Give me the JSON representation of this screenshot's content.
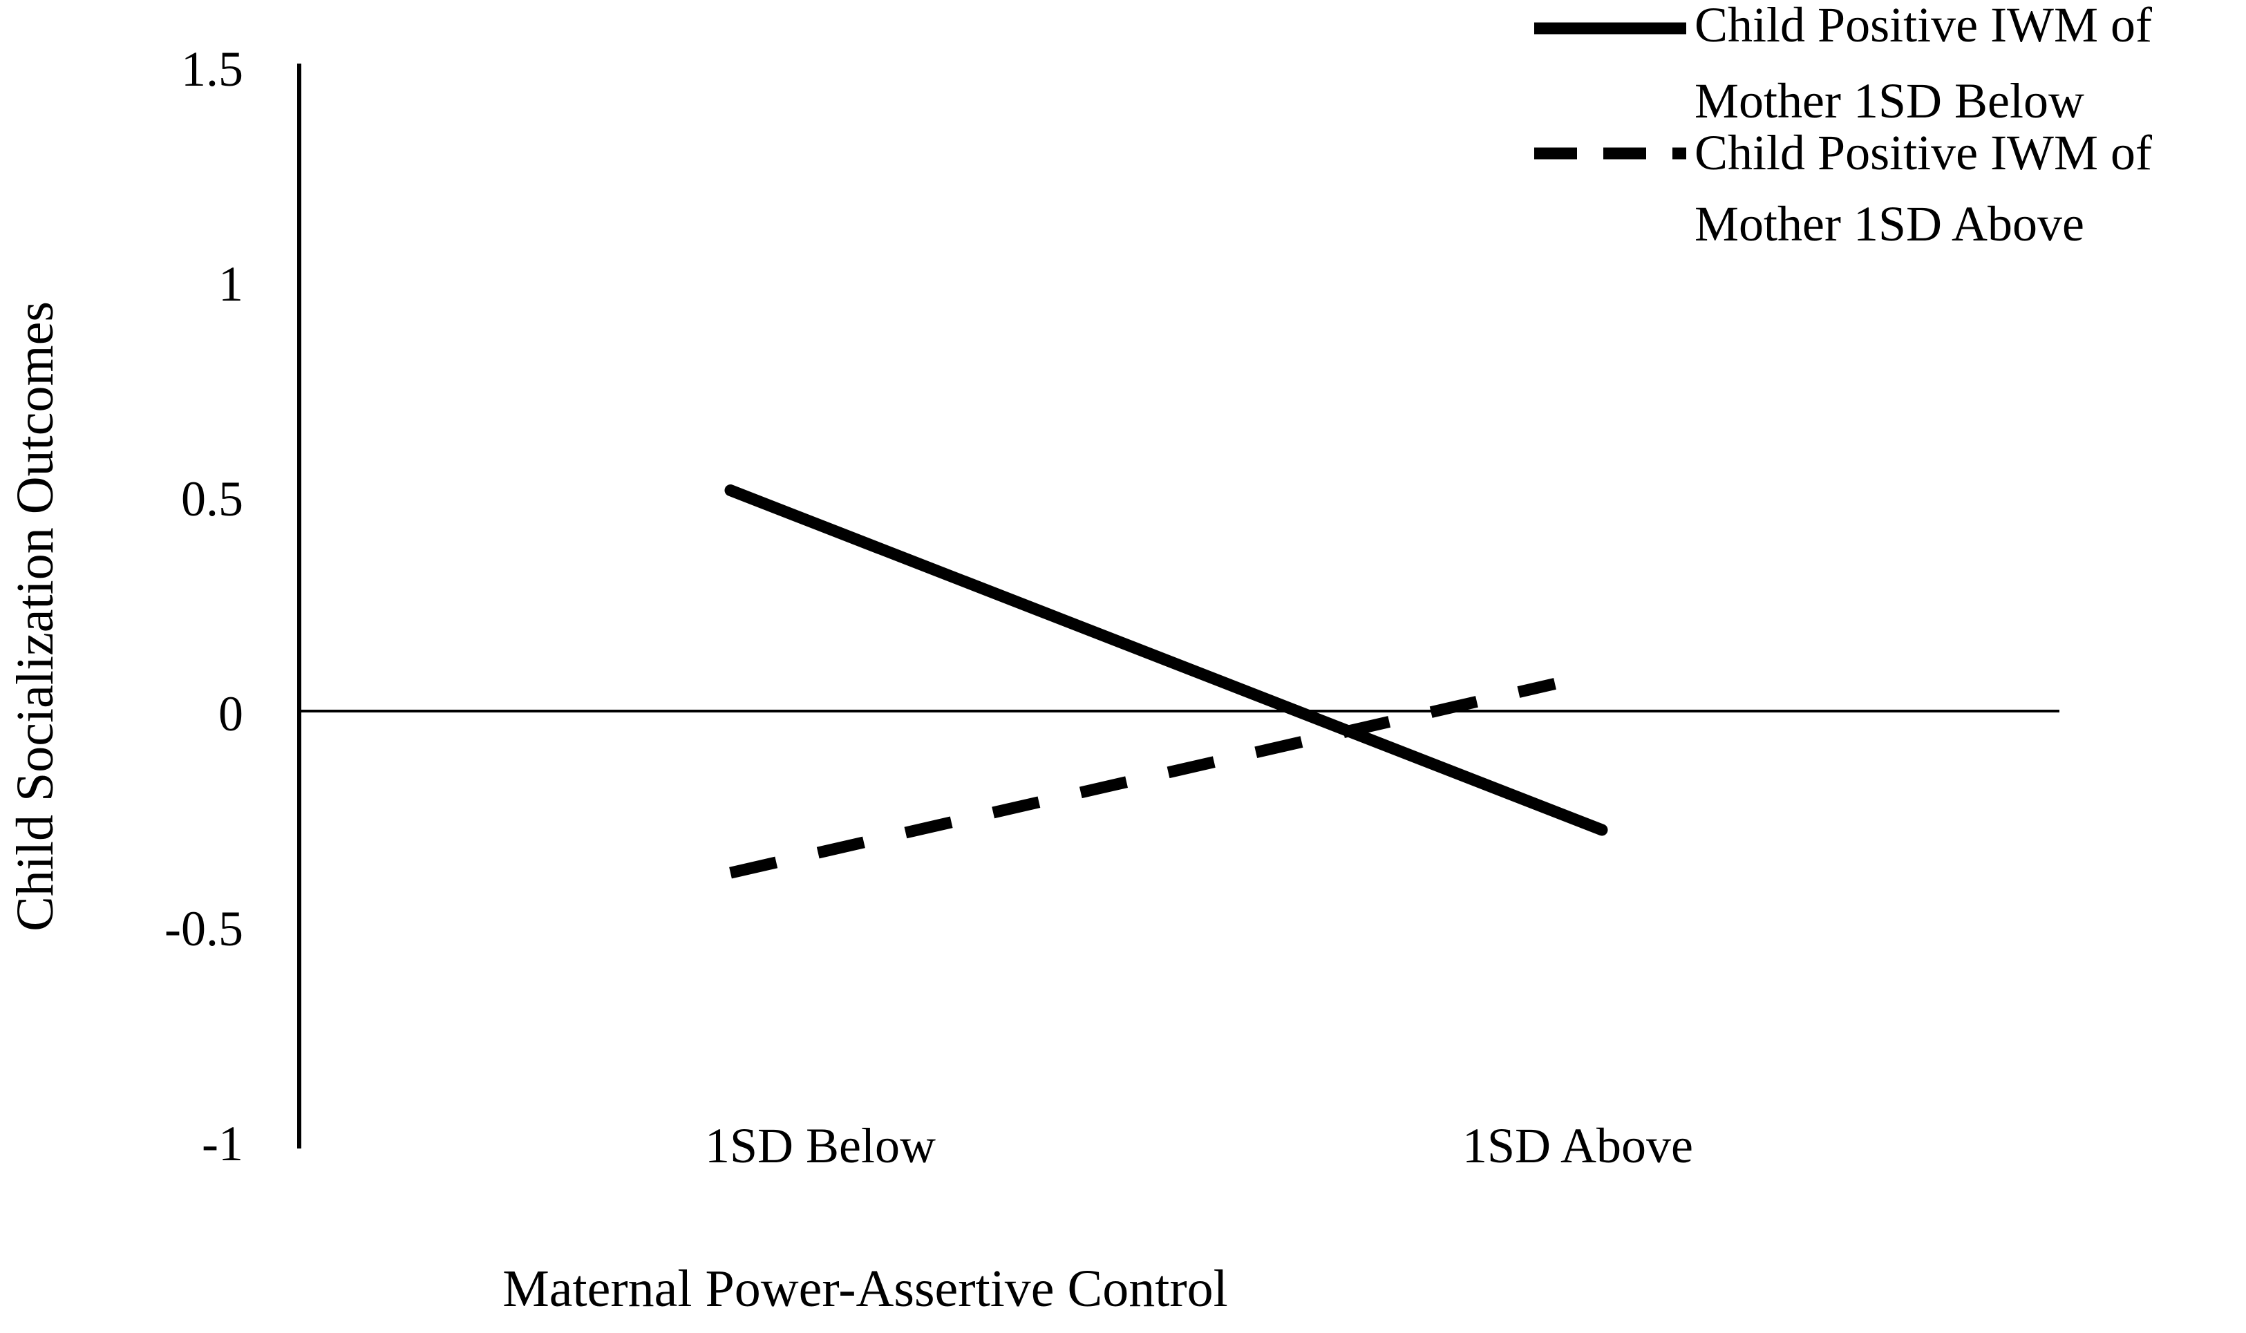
{
  "chart_data": {
    "type": "line",
    "categories": [
      "1SD Below",
      "1SD Above"
    ],
    "series": [
      {
        "name": "Child Positive IWM of Mother 1SD Below",
        "name_lines": [
          "Child Positive IWM of",
          "Mother 1SD Below"
        ],
        "values": [
          0.52,
          -0.27
        ],
        "style": "solid"
      },
      {
        "name": "Child Positive IWM of Mother 1SD Above",
        "name_lines": [
          "Child Positive IWM of",
          "Mother 1SD Above"
        ],
        "values": [
          -0.37,
          0.07
        ],
        "style": "dashed"
      }
    ],
    "xlabel": "Maternal Power-Assertive Control",
    "ylabel": "Child Socialization Outcomes",
    "ylim": [
      -1,
      1.5
    ],
    "yticks": [
      -1,
      -0.5,
      0,
      0.5,
      1,
      1.5
    ],
    "ytick_labels": [
      "-1",
      "-0.5",
      "0",
      "0.5",
      "1",
      "1.5"
    ],
    "grid": false,
    "legend_position": "top-right",
    "line_color": "#000000"
  }
}
